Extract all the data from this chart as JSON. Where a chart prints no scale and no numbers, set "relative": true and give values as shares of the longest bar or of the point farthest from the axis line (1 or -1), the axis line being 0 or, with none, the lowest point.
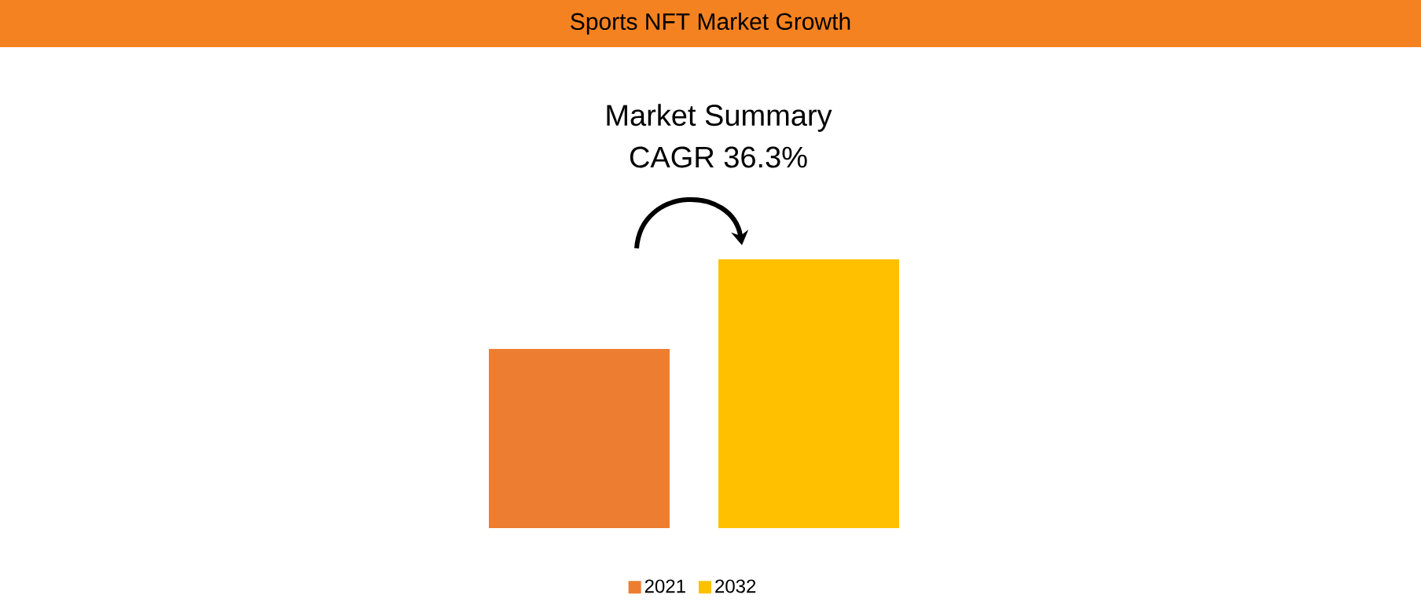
{
  "chart_data": {
    "type": "bar",
    "title": "Sports NFT Market Growth",
    "annotations": [
      "Market Summary",
      "CAGR 36.3%"
    ],
    "categories": [
      null
    ],
    "relative": true,
    "legend": "bottom",
    "series": [
      {
        "name": "2021",
        "color": "#ed7d31",
        "values": [
          0.667
        ]
      },
      {
        "name": "2032",
        "color": "#ffc000",
        "values": [
          1
        ]
      }
    ]
  }
}
